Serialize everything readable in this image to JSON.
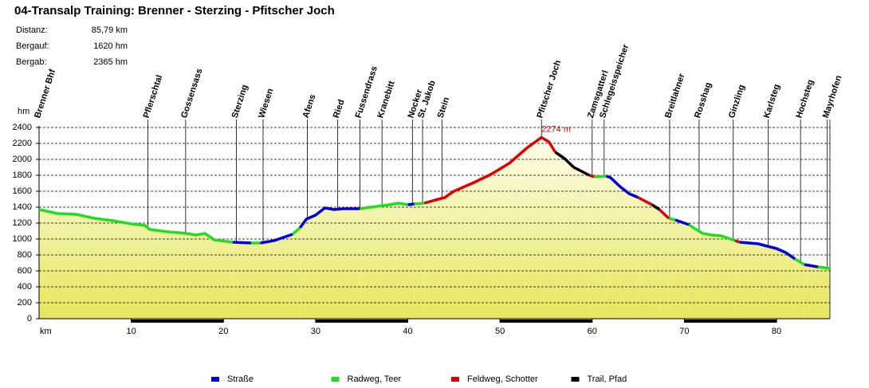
{
  "chart_data": {
    "type": "profile",
    "title": "04-Transalp Training: Brenner - Sterzing - Pfitscher  Joch",
    "stats": [
      {
        "label": "Distanz:",
        "value": "85,79 km"
      },
      {
        "label": "Bergauf:",
        "value": "1620 hm"
      },
      {
        "label": "Bergab:",
        "value": "2365 hm"
      }
    ],
    "y_label": "hm",
    "x_label": "km",
    "xlim": [
      0,
      85.79
    ],
    "ylim": [
      0,
      2400
    ],
    "xticks": [
      10,
      20,
      30,
      40,
      50,
      60,
      70,
      80
    ],
    "yticks": [
      0,
      200,
      400,
      600,
      800,
      1000,
      1200,
      1400,
      1600,
      1800,
      2000,
      2200,
      2400
    ],
    "grid": true,
    "annotation": {
      "text": "2274 m",
      "x": 54.5,
      "y": 2274,
      "color": "#e00000"
    },
    "waypoints": [
      {
        "label": "Brenner Bhf",
        "x": 0
      },
      {
        "label": "Pflerschtal",
        "x": 11.8
      },
      {
        "label": "Gossensass",
        "x": 15.9
      },
      {
        "label": "Sterzing",
        "x": 21.4
      },
      {
        "label": "Wiesen",
        "x": 24.3
      },
      {
        "label": "Afens",
        "x": 29.1
      },
      {
        "label": "Ried",
        "x": 32.4
      },
      {
        "label": "Fussendrass",
        "x": 34.8
      },
      {
        "label": "Kranebitt",
        "x": 37.2
      },
      {
        "label": "Nocker",
        "x": 40.5
      },
      {
        "label": "St. Jakob",
        "x": 41.6
      },
      {
        "label": "Stein",
        "x": 43.7
      },
      {
        "label": "Pfitscher Joch",
        "x": 54.5
      },
      {
        "label": "Zamsgatterl",
        "x": 60.0
      },
      {
        "label": "Schlegeisspeicher",
        "x": 61.3
      },
      {
        "label": "Breitlahner",
        "x": 68.4
      },
      {
        "label": "Rosshag",
        "x": 71.6
      },
      {
        "label": "Ginzling",
        "x": 75.3
      },
      {
        "label": "Karlsteg",
        "x": 79.1
      },
      {
        "label": "Hochsteg",
        "x": 82.6
      },
      {
        "label": "Mayrhofen",
        "x": 85.5
      }
    ],
    "series": [
      {
        "name": "Straße",
        "color": "#0000dd",
        "x": [
          21,
          23,
          null,
          24,
          25.5,
          27.5,
          null,
          28.3,
          29,
          30,
          31,
          32,
          33,
          34.8,
          null,
          40,
          40.7,
          null,
          61.5,
          62,
          63,
          64,
          65,
          null,
          69,
          70.5,
          null,
          76,
          78,
          80,
          81,
          82,
          null,
          83,
          84.5
        ],
        "values": [
          960,
          950,
          null,
          950,
          980,
          1060,
          null,
          1140,
          1250,
          1300,
          1390,
          1370,
          1380,
          1380,
          null,
          1430,
          1440,
          null,
          1790,
          1770,
          1660,
          1570,
          1520,
          null,
          1240,
          1180,
          null,
          960,
          940,
          880,
          830,
          750,
          null,
          680,
          650
        ]
      },
      {
        "name": "Radweg, Teer",
        "color": "#22dd22",
        "x": [
          0,
          2,
          4,
          6,
          8,
          10,
          11.5,
          12,
          14,
          16,
          17,
          18,
          19,
          21,
          null,
          23,
          24,
          null,
          27.5,
          28.3,
          null,
          34.8,
          36,
          38,
          39,
          40,
          null,
          40.7,
          41.8,
          null,
          60.2,
          61.5,
          null,
          68.3,
          69,
          null,
          70.5,
          71,
          72,
          73,
          74,
          75.5,
          null,
          82,
          83,
          null,
          84.5,
          85.79
        ],
        "values": [
          1370,
          1320,
          1310,
          1260,
          1230,
          1190,
          1170,
          1120,
          1090,
          1070,
          1050,
          1070,
          990,
          960,
          null,
          950,
          950,
          null,
          1060,
          1140,
          null,
          1380,
          1400,
          1430,
          1450,
          1430,
          null,
          1440,
          1450,
          null,
          1780,
          1790,
          null,
          1260,
          1240,
          null,
          1180,
          1140,
          1070,
          1050,
          1040,
          980,
          null,
          750,
          680,
          null,
          650,
          630
        ]
      },
      {
        "name": "Feldweg, Schotter",
        "color": "#dd0000",
        "x": [
          41.8,
          43,
          44,
          45,
          47,
          49,
          51,
          53,
          54.5,
          55.3,
          56,
          null,
          59.7,
          60.2,
          null,
          65,
          66.5,
          null,
          67.3,
          68.3,
          null,
          75.5,
          76
        ],
        "values": [
          1450,
          1490,
          1520,
          1600,
          1700,
          1810,
          1950,
          2150,
          2274,
          2220,
          2090,
          null,
          1800,
          1780,
          null,
          1520,
          1430,
          null,
          1370,
          1260,
          null,
          980,
          960
        ]
      },
      {
        "name": "Trail, Pfad",
        "color": "#000000",
        "x": [
          56,
          57,
          58,
          59.7,
          null,
          66.5,
          67.3
        ],
        "values": [
          2090,
          2010,
          1900,
          1800,
          null,
          1430,
          1370
        ]
      }
    ]
  }
}
